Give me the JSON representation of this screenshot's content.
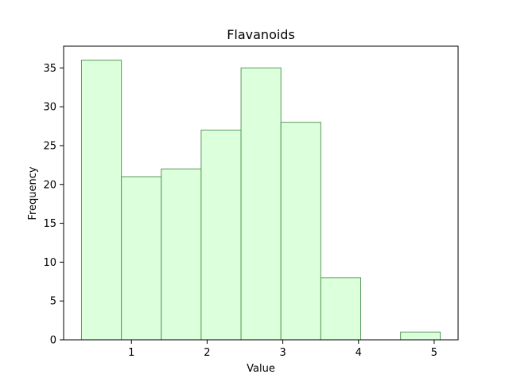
{
  "chart_data": {
    "type": "bar",
    "title": "Flavanoids",
    "xlabel": "Value",
    "ylabel": "Frequency",
    "bins": [
      {
        "start": 0.34,
        "end": 0.867,
        "count": 36
      },
      {
        "start": 0.867,
        "end": 1.394,
        "count": 21
      },
      {
        "start": 1.394,
        "end": 1.921,
        "count": 22
      },
      {
        "start": 1.921,
        "end": 2.448,
        "count": 27
      },
      {
        "start": 2.448,
        "end": 2.975,
        "count": 35
      },
      {
        "start": 2.975,
        "end": 3.502,
        "count": 28
      },
      {
        "start": 3.502,
        "end": 4.029,
        "count": 8
      },
      {
        "start": 4.029,
        "end": 4.556,
        "count": 0
      },
      {
        "start": 4.556,
        "end": 5.08,
        "count": 1
      }
    ],
    "xlim": [
      0.104,
      5.316
    ],
    "ylim": [
      0,
      37.8
    ],
    "xticks": [
      1,
      2,
      3,
      4,
      5
    ],
    "yticks": [
      0,
      5,
      10,
      15,
      20,
      25,
      30,
      35
    ],
    "bar_fill": "#dcffdc",
    "bar_edge": "#5c9a5c",
    "grid": false,
    "legend": false
  }
}
